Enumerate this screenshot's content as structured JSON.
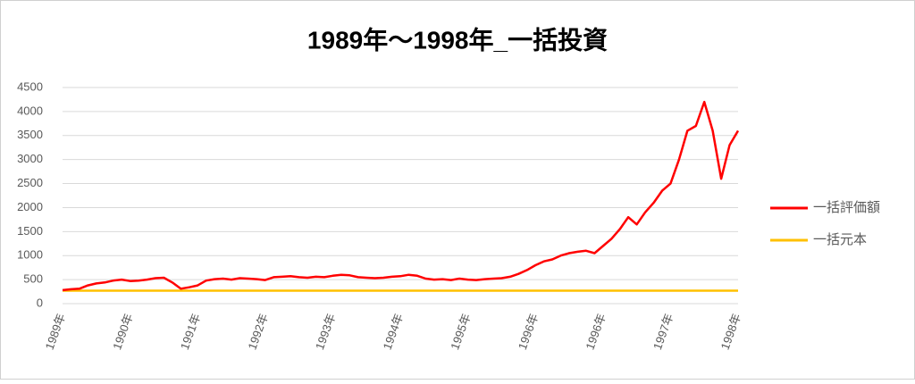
{
  "chart_data": {
    "type": "line",
    "title": "1989年～1998年_一括投資",
    "categories": [
      "1989年",
      null,
      null,
      null,
      null,
      null,
      null,
      null,
      "1990年",
      null,
      null,
      null,
      null,
      null,
      null,
      null,
      "1991年",
      null,
      null,
      null,
      null,
      null,
      null,
      null,
      "1992年",
      null,
      null,
      null,
      null,
      null,
      null,
      null,
      "1993年",
      null,
      null,
      null,
      null,
      null,
      null,
      null,
      "1994年",
      null,
      null,
      null,
      null,
      null,
      null,
      null,
      "1995年",
      null,
      null,
      null,
      null,
      null,
      null,
      null,
      "1996年",
      null,
      null,
      null,
      null,
      null,
      null,
      null,
      "1996年",
      null,
      null,
      null,
      null,
      null,
      null,
      null,
      "1997年",
      null,
      null,
      null,
      null,
      null,
      null,
      null,
      "1998年"
    ],
    "series": [
      {
        "name": "一括評価額",
        "color": "#ff0000",
        "values": [
          280,
          300,
          310,
          380,
          420,
          440,
          480,
          500,
          470,
          480,
          500,
          530,
          540,
          440,
          310,
          340,
          380,
          480,
          510,
          520,
          500,
          530,
          520,
          510,
          490,
          550,
          560,
          570,
          550,
          540,
          560,
          550,
          580,
          600,
          590,
          550,
          540,
          530,
          540,
          560,
          570,
          600,
          580,
          520,
          500,
          510,
          490,
          520,
          500,
          490,
          510,
          520,
          530,
          560,
          620,
          700,
          800,
          880,
          920,
          1000,
          1050,
          1080,
          1100,
          1050,
          1200,
          1350,
          1550,
          1800,
          1650,
          1900,
          2100,
          2350,
          2500,
          3000,
          3600,
          3700,
          4200,
          3600,
          2600,
          3300,
          3600
        ]
      },
      {
        "name": "一括元本",
        "color": "#ffc000",
        "values": [
          270,
          270,
          270,
          270,
          270,
          270,
          270,
          270,
          270,
          270,
          270,
          270,
          270,
          270,
          270,
          270,
          270,
          270,
          270,
          270,
          270,
          270,
          270,
          270,
          270,
          270,
          270,
          270,
          270,
          270,
          270,
          270,
          270,
          270,
          270,
          270,
          270,
          270,
          270,
          270,
          270,
          270,
          270,
          270,
          270,
          270,
          270,
          270,
          270,
          270,
          270,
          270,
          270,
          270,
          270,
          270,
          270,
          270,
          270,
          270,
          270,
          270,
          270,
          270,
          270,
          270,
          270,
          270,
          270,
          270,
          270,
          270,
          270,
          270,
          270,
          270,
          270,
          270,
          270,
          270,
          270
        ]
      }
    ],
    "ylim": [
      0,
      4500
    ],
    "yticks": [
      0,
      500,
      1000,
      1500,
      2000,
      2500,
      3000,
      3500,
      4000,
      4500
    ],
    "grid": true,
    "legend": "right"
  }
}
